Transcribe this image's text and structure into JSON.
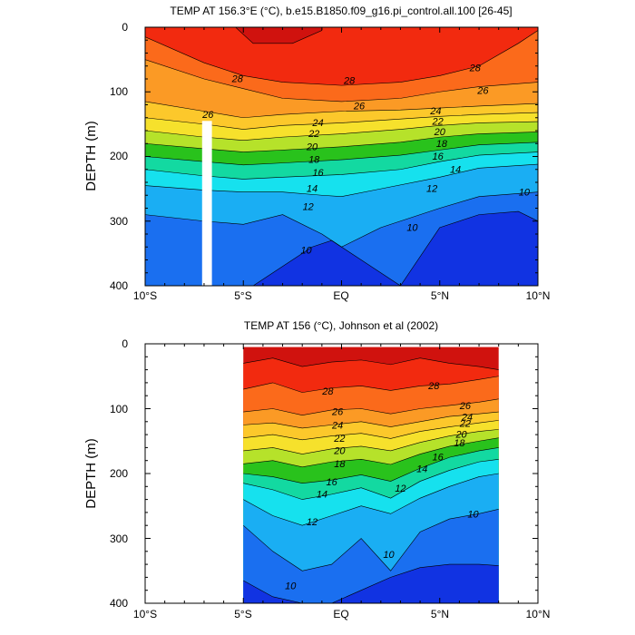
{
  "chart_data": [
    {
      "type": "heatmap",
      "title": "TEMP AT 156.3°E (°C), b.e15.B1850.f09_g16.pi_control.all.100 [26-45]",
      "ylabel": "DEPTH (m)",
      "xlabel": "",
      "x_ticks": [
        -10,
        -5,
        0,
        5,
        10
      ],
      "x_tick_labels": [
        "10°S",
        "5°S",
        "EQ",
        "5°N",
        "10°N"
      ],
      "xlim": [
        -10,
        10
      ],
      "y_ticks": [
        0,
        100,
        200,
        300,
        400
      ],
      "y_tick_labels": [
        "0",
        "100",
        "200",
        "300",
        "400"
      ],
      "ylim": [
        400,
        0
      ],
      "data_x_range": [
        -10,
        10
      ],
      "gaps": [
        {
          "x_start": -7.1,
          "x_end": -6.6,
          "depth_start": 145,
          "depth_end": 400
        }
      ],
      "grid": false,
      "contour_interval": 2,
      "levels": [
        30,
        28,
        26,
        24,
        22,
        20,
        18,
        16,
        14,
        12,
        10,
        8
      ],
      "contours": [
        {
          "level": 30,
          "x": [
            -5.4,
            -4.5,
            -2.5,
            -1.0,
            -1.0
          ],
          "depth": [
            0,
            25,
            25,
            5,
            0
          ]
        },
        {
          "level": 28,
          "x": [
            -10,
            -7,
            -5,
            -3,
            0,
            3,
            5,
            7,
            9,
            10
          ],
          "depth": [
            15,
            55,
            75,
            85,
            90,
            85,
            75,
            60,
            25,
            5
          ]
        },
        {
          "level": 26,
          "x": [
            -10,
            -7,
            -5,
            -3,
            0,
            3,
            5,
            7,
            10
          ],
          "depth": [
            50,
            80,
            95,
            110,
            115,
            110,
            100,
            92,
            85
          ]
        },
        {
          "level": 24,
          "x": [
            -10,
            -7,
            -5,
            -3,
            0,
            3,
            5,
            7,
            10
          ],
          "depth": [
            115,
            130,
            140,
            135,
            130,
            128,
            125,
            122,
            118
          ]
        },
        {
          "level": 22,
          "x": [
            -10,
            -7,
            -5,
            -3,
            0,
            3,
            5,
            7,
            10
          ],
          "depth": [
            140,
            150,
            158,
            152,
            148,
            142,
            138,
            135,
            132
          ]
        },
        {
          "level": 20,
          "x": [
            -10,
            -7,
            -5,
            -3,
            0,
            3,
            5,
            7,
            10
          ],
          "depth": [
            160,
            170,
            175,
            170,
            165,
            158,
            152,
            148,
            146
          ]
        },
        {
          "level": 18,
          "x": [
            -10,
            -7,
            -5,
            -3,
            0,
            3,
            5,
            7,
            10
          ],
          "depth": [
            180,
            188,
            193,
            190,
            185,
            178,
            170,
            165,
            162
          ]
        },
        {
          "level": 16,
          "x": [
            -10,
            -7,
            -5,
            -3,
            0,
            3,
            5,
            7,
            10
          ],
          "depth": [
            200,
            208,
            213,
            210,
            205,
            198,
            190,
            182,
            178
          ]
        },
        {
          "level": 14,
          "x": [
            -10,
            -7,
            -5,
            -3,
            0,
            3,
            5,
            7,
            10
          ],
          "depth": [
            220,
            230,
            235,
            232,
            228,
            220,
            208,
            198,
            193
          ]
        },
        {
          "level": 12,
          "x": [
            -10,
            -7,
            -5,
            -3,
            -1,
            0,
            2,
            5,
            7,
            10
          ],
          "depth": [
            245,
            252,
            255,
            255,
            260,
            262,
            250,
            232,
            218,
            212
          ]
        },
        {
          "level": 10,
          "x": [
            -10,
            -7,
            -5,
            -3,
            -1,
            0,
            2,
            5,
            7,
            10
          ],
          "depth": [
            290,
            300,
            305,
            290,
            320,
            340,
            310,
            280,
            262,
            255
          ]
        },
        {
          "level": 8,
          "x": [
            -4.5,
            -3.0,
            -1.5,
            -0.5,
            1.0,
            3.0,
            5.0,
            7.0,
            9.0,
            10.0
          ],
          "depth": [
            400,
            370,
            340,
            330,
            360,
            400,
            310,
            290,
            285,
            300
          ]
        }
      ],
      "contour_labels": [
        {
          "text": "28",
          "x": -5.3,
          "depth": 85
        },
        {
          "text": "28",
          "x": 0.4,
          "depth": 88
        },
        {
          "text": "28",
          "x": 6.8,
          "depth": 68
        },
        {
          "text": "26",
          "x": -6.8,
          "depth": 140
        },
        {
          "text": "26",
          "x": 0.9,
          "depth": 127
        },
        {
          "text": "26",
          "x": 7.2,
          "depth": 103
        },
        {
          "text": "24",
          "x": -1.2,
          "depth": 153
        },
        {
          "text": "24",
          "x": 4.8,
          "depth": 135
        },
        {
          "text": "22",
          "x": -1.4,
          "depth": 170
        },
        {
          "text": "22",
          "x": 4.9,
          "depth": 151
        },
        {
          "text": "20",
          "x": -1.5,
          "depth": 190
        },
        {
          "text": "20",
          "x": 5.0,
          "depth": 167
        },
        {
          "text": "18",
          "x": -1.4,
          "depth": 210
        },
        {
          "text": "18",
          "x": 5.1,
          "depth": 185
        },
        {
          "text": "16",
          "x": -1.2,
          "depth": 230
        },
        {
          "text": "16",
          "x": 4.9,
          "depth": 205
        },
        {
          "text": "14",
          "x": -1.5,
          "depth": 255
        },
        {
          "text": "14",
          "x": 5.8,
          "depth": 225
        },
        {
          "text": "12",
          "x": -1.7,
          "depth": 283
        },
        {
          "text": "12",
          "x": 4.6,
          "depth": 255
        },
        {
          "text": "10",
          "x": -1.8,
          "depth": 350
        },
        {
          "text": "10",
          "x": 3.6,
          "depth": 315
        },
        {
          "text": "10",
          "x": 9.3,
          "depth": 260
        }
      ]
    },
    {
      "type": "heatmap",
      "title": "TEMP AT 156 (°C), Johnson et al (2002)",
      "ylabel": "DEPTH (m)",
      "xlabel": "",
      "x_ticks": [
        -10,
        -5,
        0,
        5,
        10
      ],
      "x_tick_labels": [
        "10°S",
        "5°S",
        "EQ",
        "5°N",
        "10°N"
      ],
      "xlim": [
        -10,
        10
      ],
      "y_ticks": [
        0,
        100,
        200,
        300,
        400
      ],
      "y_tick_labels": [
        "0",
        "100",
        "200",
        "300",
        "400"
      ],
      "ylim": [
        400,
        0
      ],
      "data_x_range": [
        -5,
        8
      ],
      "data_depth_range": [
        5,
        400
      ],
      "gaps": [],
      "grid": false,
      "contour_interval": 2,
      "levels": [
        30,
        28,
        26,
        24,
        22,
        20,
        18,
        16,
        14,
        12,
        10,
        8
      ],
      "contours": [
        {
          "level": 30,
          "x": [
            -5.0,
            -3.5,
            -2.0,
            -0.5,
            1.0,
            2.5,
            4.0,
            5.5,
            7.0,
            8.0
          ],
          "depth": [
            30,
            22,
            35,
            28,
            25,
            32,
            22,
            30,
            35,
            40
          ]
        },
        {
          "level": 28,
          "x": [
            -5.0,
            -3.5,
            -2.0,
            -0.5,
            1.0,
            2.5,
            4.0,
            5.5,
            7.0,
            8.0
          ],
          "depth": [
            70,
            60,
            75,
            68,
            65,
            72,
            65,
            62,
            55,
            50
          ]
        },
        {
          "level": 26,
          "x": [
            -5.0,
            -3.5,
            -2.0,
            -0.5,
            1.0,
            2.5,
            4.0,
            5.5,
            7.0,
            8.0
          ],
          "depth": [
            105,
            100,
            110,
            102,
            100,
            108,
            100,
            95,
            90,
            85
          ]
        },
        {
          "level": 24,
          "x": [
            -5.0,
            -3.5,
            -2.0,
            -0.5,
            1.0,
            2.5,
            4.0,
            5.5,
            7.0,
            8.0
          ],
          "depth": [
            125,
            122,
            130,
            125,
            120,
            128,
            120,
            112,
            108,
            105
          ]
        },
        {
          "level": 22,
          "x": [
            -5.0,
            -3.5,
            -2.0,
            -0.5,
            1.0,
            2.5,
            4.0,
            5.5,
            7.0,
            8.0
          ],
          "depth": [
            145,
            140,
            148,
            142,
            138,
            146,
            135,
            128,
            122,
            118
          ]
        },
        {
          "level": 20,
          "x": [
            -5.0,
            -3.5,
            -2.0,
            -0.5,
            1.0,
            2.5,
            4.0,
            5.5,
            7.0,
            8.0
          ],
          "depth": [
            165,
            160,
            170,
            162,
            158,
            165,
            152,
            142,
            135,
            132
          ]
        },
        {
          "level": 18,
          "x": [
            -5.0,
            -3.5,
            -2.0,
            -0.5,
            1.0,
            2.5,
            4.0,
            5.5,
            7.0,
            8.0
          ],
          "depth": [
            185,
            180,
            190,
            182,
            178,
            186,
            170,
            158,
            150,
            145
          ]
        },
        {
          "level": 16,
          "x": [
            -5.0,
            -3.5,
            -2.0,
            -0.5,
            1.0,
            2.5,
            4.0,
            5.5,
            7.0,
            8.0
          ],
          "depth": [
            200,
            205,
            215,
            210,
            202,
            212,
            192,
            175,
            165,
            160
          ]
        },
        {
          "level": 14,
          "x": [
            -5.0,
            -3.5,
            -2.0,
            -0.5,
            1.0,
            2.5,
            4.0,
            5.5,
            7.0,
            8.0
          ],
          "depth": [
            215,
            225,
            240,
            232,
            222,
            238,
            212,
            195,
            182,
            178
          ]
        },
        {
          "level": 12,
          "x": [
            -5.0,
            -3.5,
            -2.0,
            -0.5,
            1.0,
            2.5,
            4.0,
            5.5,
            7.0,
            8.0
          ],
          "depth": [
            240,
            265,
            280,
            265,
            250,
            262,
            238,
            220,
            205,
            200
          ]
        },
        {
          "level": 10,
          "x": [
            -5.0,
            -3.5,
            -2.0,
            -0.5,
            1.0,
            2.5,
            4.0,
            5.5,
            7.0,
            8.0
          ],
          "depth": [
            280,
            320,
            350,
            340,
            300,
            350,
            290,
            270,
            262,
            255
          ]
        },
        {
          "level": 8,
          "x": [
            -5.0,
            -3.5,
            -2.0,
            -0.5,
            1.0,
            2.5,
            4.0,
            5.5,
            7.0,
            8.0
          ],
          "depth": [
            365,
            390,
            400,
            400,
            380,
            360,
            345,
            340,
            340,
            342
          ]
        }
      ],
      "contour_labels": [
        {
          "text": "28",
          "x": -0.7,
          "depth": 78
        },
        {
          "text": "28",
          "x": 4.7,
          "depth": 70
        },
        {
          "text": "26",
          "x": -0.2,
          "depth": 110
        },
        {
          "text": "26",
          "x": 6.3,
          "depth": 101
        },
        {
          "text": "24",
          "x": -0.2,
          "depth": 131
        },
        {
          "text": "24",
          "x": 6.4,
          "depth": 118
        },
        {
          "text": "22",
          "x": -0.1,
          "depth": 151
        },
        {
          "text": "22",
          "x": 6.3,
          "depth": 128
        },
        {
          "text": "20",
          "x": -0.1,
          "depth": 170
        },
        {
          "text": "20",
          "x": 6.1,
          "depth": 145
        },
        {
          "text": "18",
          "x": -0.1,
          "depth": 190
        },
        {
          "text": "18",
          "x": 6.0,
          "depth": 158
        },
        {
          "text": "16",
          "x": -0.5,
          "depth": 218
        },
        {
          "text": "16",
          "x": 4.9,
          "depth": 180
        },
        {
          "text": "14",
          "x": -1.0,
          "depth": 237
        },
        {
          "text": "14",
          "x": 4.1,
          "depth": 198
        },
        {
          "text": "12",
          "x": 3.0,
          "depth": 228
        },
        {
          "text": "12",
          "x": -1.5,
          "depth": 280
        },
        {
          "text": "10",
          "x": 6.7,
          "depth": 268
        },
        {
          "text": "10",
          "x": 2.4,
          "depth": 330
        },
        {
          "text": "10",
          "x": -2.6,
          "depth": 378
        }
      ]
    }
  ]
}
